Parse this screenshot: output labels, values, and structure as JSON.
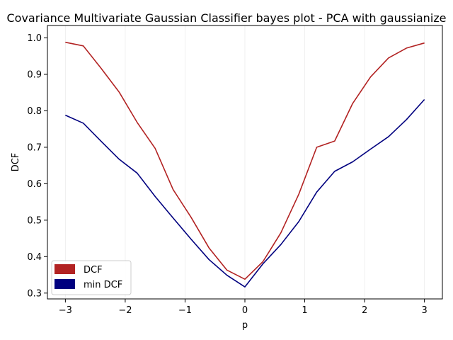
{
  "chart_data": {
    "type": "line",
    "title": "Covariance Multivariate Gaussian Classifier bayes plot - PCA with gaussianize",
    "xlabel": "p",
    "ylabel": "DCF",
    "xlim": [
      -3.3,
      3.3
    ],
    "ylim": [
      0.284,
      1.034
    ],
    "xticks": [
      -3,
      -2,
      -1,
      0,
      1,
      2,
      3
    ],
    "xtick_labels": [
      "−3",
      "−2",
      "−1",
      "0",
      "1",
      "2",
      "3"
    ],
    "yticks": [
      0.3,
      0.4,
      0.5,
      0.6,
      0.7,
      0.8,
      0.9,
      1.0
    ],
    "ytick_labels": [
      "0.3",
      "0.4",
      "0.5",
      "0.6",
      "0.7",
      "0.8",
      "0.9",
      "1.0"
    ],
    "grid": "vertical",
    "legend_position": "lower-left",
    "x": [
      -3.0,
      -2.7,
      -2.4,
      -2.1,
      -1.8,
      -1.5,
      -1.2,
      -0.9,
      -0.6,
      -0.3,
      0.0,
      0.3,
      0.6,
      0.9,
      1.2,
      1.5,
      1.8,
      2.1,
      2.4,
      2.7,
      3.0
    ],
    "series": [
      {
        "name": "DCF",
        "color": "#b22222",
        "values": [
          0.988,
          0.978,
          0.916,
          0.851,
          0.768,
          0.697,
          0.584,
          0.508,
          0.424,
          0.363,
          0.338,
          0.386,
          0.465,
          0.571,
          0.7,
          0.717,
          0.82,
          0.893,
          0.945,
          0.972,
          0.986
        ]
      },
      {
        "name": "min DCF",
        "color": "#00007f",
        "values": [
          0.788,
          0.766,
          0.716,
          0.667,
          0.629,
          0.565,
          0.506,
          0.448,
          0.392,
          0.349,
          0.317,
          0.38,
          0.433,
          0.496,
          0.577,
          0.634,
          0.66,
          0.695,
          0.729,
          0.776,
          0.831
        ]
      }
    ]
  }
}
